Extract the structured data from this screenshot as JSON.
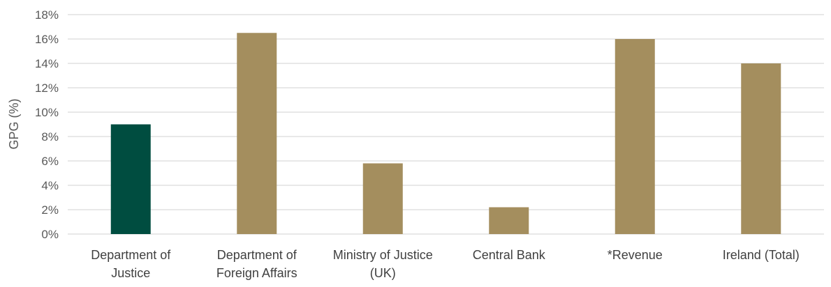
{
  "chart_data": {
    "type": "bar",
    "title": "",
    "xlabel": "",
    "ylabel": "GPG (%)",
    "categories": [
      [
        "Department of",
        "Justice"
      ],
      [
        "Department of",
        "Foreign Affairs"
      ],
      [
        "Ministry of Justice",
        "(UK)"
      ],
      [
        "Central Bank"
      ],
      [
        "*Revenue"
      ],
      [
        "Ireland (Total)"
      ]
    ],
    "values": [
      9.0,
      16.5,
      5.8,
      2.2,
      16.0,
      14.0
    ],
    "bar_colors": [
      "#004d40",
      "#a48e5e",
      "#a48e5e",
      "#a48e5e",
      "#a48e5e",
      "#a48e5e"
    ],
    "ylim": [
      0,
      18
    ],
    "yticks": [
      0,
      2,
      4,
      6,
      8,
      10,
      12,
      14,
      16,
      18
    ],
    "ytick_labels": [
      "0%",
      "2%",
      "4%",
      "6%",
      "8%",
      "10%",
      "12%",
      "14%",
      "16%",
      "18%"
    ],
    "grid": true,
    "legend": "none"
  }
}
